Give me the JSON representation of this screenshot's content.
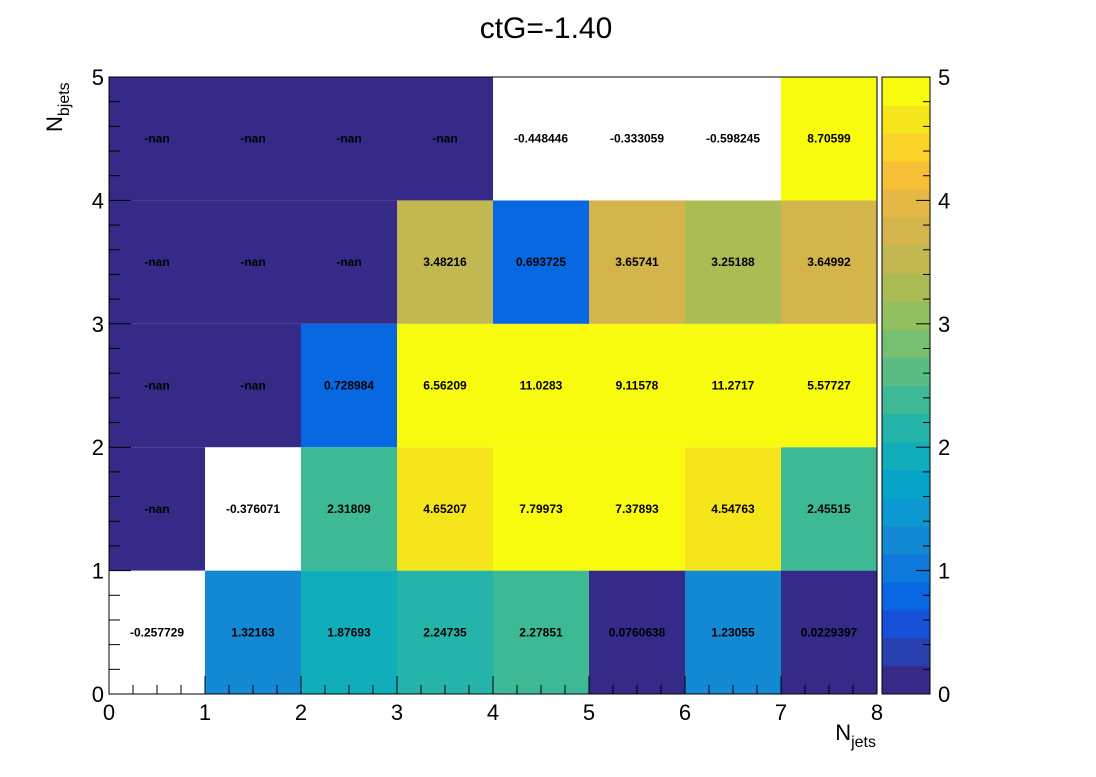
{
  "chart_data": {
    "type": "heatmap",
    "title": "ctG=-1.40",
    "xlabel": "N_jets",
    "ylabel": "N_bjets",
    "xlabel_parts": {
      "base": "N",
      "sub": "jets"
    },
    "ylabel_parts": {
      "base": "N",
      "sub": "bjets"
    },
    "xlim": [
      0,
      8
    ],
    "ylim": [
      0,
      5
    ],
    "x_bin_edges": [
      0,
      1,
      2,
      3,
      4,
      5,
      6,
      7,
      8
    ],
    "y_bin_edges": [
      0,
      1,
      2,
      3,
      4,
      5
    ],
    "x_tick_labels": [
      "0",
      "1",
      "2",
      "3",
      "4",
      "5",
      "6",
      "7",
      "8"
    ],
    "y_tick_labels": [
      "0",
      "1",
      "2",
      "3",
      "4",
      "5"
    ],
    "z_range": [
      0,
      5
    ],
    "z_tick_labels": [
      "0",
      "1",
      "2",
      "3",
      "4",
      "5"
    ],
    "colormap": "parula",
    "grid": false,
    "values": [
      [
        -0.257729,
        1.32163,
        1.87693,
        2.24735,
        2.27851,
        0.0760638,
        1.23055,
        0.0229397
      ],
      [
        null,
        -0.376071,
        2.31809,
        4.65207,
        7.79973,
        7.37893,
        4.54763,
        2.45515
      ],
      [
        null,
        null,
        0.728984,
        6.56209,
        11.0283,
        9.11578,
        11.2717,
        5.57727
      ],
      [
        null,
        null,
        null,
        3.48216,
        0.693725,
        3.65741,
        3.25188,
        3.64992
      ],
      [
        null,
        null,
        null,
        null,
        -0.448446,
        -0.333059,
        -0.598245,
        8.70599
      ]
    ],
    "cell_labels": [
      [
        "-0.257729",
        "1.32163",
        "1.87693",
        "2.24735",
        "2.27851",
        "0.0760638",
        "1.23055",
        "0.0229397"
      ],
      [
        "-nan",
        "-0.376071",
        "2.31809",
        "4.65207",
        "7.79973",
        "7.37893",
        "4.54763",
        "2.45515"
      ],
      [
        "-nan",
        "-nan",
        "0.728984",
        "6.56209",
        "11.0283",
        "9.11578",
        "11.2717",
        "5.57727"
      ],
      [
        "-nan",
        "-nan",
        "-nan",
        "3.48216",
        "0.693725",
        "3.65741",
        "3.25188",
        "3.64992"
      ],
      [
        "-nan",
        "-nan",
        "-nan",
        "-nan",
        "-0.448446",
        "-0.333059",
        "-0.598245",
        "8.70599"
      ]
    ]
  }
}
